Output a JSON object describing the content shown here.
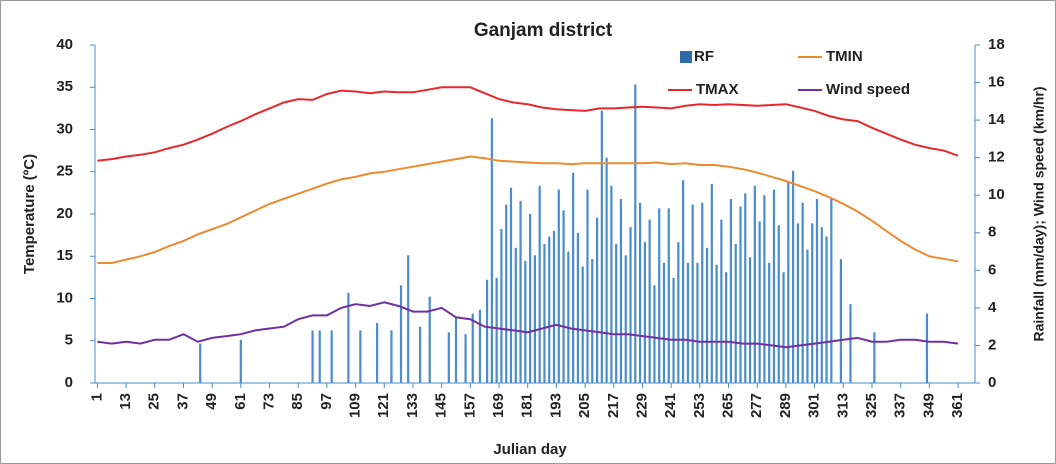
{
  "chart_data": {
    "type": "combo",
    "title": "Ganjam district",
    "xlabel": "Julian day",
    "ylabel": "Temperature (ºC)",
    "y2label": "Rainfall (mm/day); Wind speed (km/hr)",
    "xlim": [
      0,
      366
    ],
    "xticks": [
      1,
      13,
      25,
      37,
      49,
      61,
      73,
      85,
      97,
      109,
      121,
      133,
      145,
      157,
      169,
      181,
      193,
      205,
      217,
      229,
      241,
      253,
      265,
      277,
      289,
      301,
      313,
      325,
      337,
      349,
      361
    ],
    "ylim": [
      0,
      40
    ],
    "yticks": [
      0,
      5,
      10,
      15,
      20,
      25,
      30,
      35,
      40
    ],
    "y2lim": [
      0,
      18
    ],
    "y2ticks": [
      0,
      2,
      4,
      6,
      8,
      10,
      12,
      14,
      16,
      18
    ],
    "grid": false,
    "legend": "upper right",
    "x": [
      1,
      7,
      13,
      19,
      25,
      31,
      37,
      43,
      49,
      55,
      61,
      67,
      73,
      79,
      85,
      91,
      97,
      103,
      109,
      115,
      121,
      127,
      133,
      139,
      145,
      151,
      157,
      163,
      169,
      175,
      181,
      187,
      193,
      199,
      205,
      211,
      217,
      223,
      229,
      235,
      241,
      247,
      253,
      259,
      265,
      271,
      277,
      283,
      289,
      295,
      301,
      307,
      313,
      319,
      325,
      331,
      337,
      343,
      349,
      355,
      361
    ],
    "series": [
      {
        "name": "RF",
        "kind": "bar",
        "axis": "y2",
        "color": "#4a8ccc",
        "legend_color": "#2f6aa8",
        "x": [
          44,
          61,
          91,
          94,
          99,
          106,
          111,
          118,
          124,
          128,
          131,
          136,
          140,
          148,
          151,
          155,
          158,
          161,
          164,
          166,
          168,
          170,
          172,
          174,
          176,
          178,
          180,
          182,
          184,
          186,
          188,
          190,
          192,
          194,
          196,
          198,
          200,
          202,
          204,
          206,
          208,
          210,
          212,
          214,
          216,
          218,
          220,
          222,
          224,
          226,
          228,
          230,
          232,
          234,
          236,
          238,
          240,
          242,
          244,
          246,
          248,
          250,
          252,
          254,
          256,
          258,
          260,
          262,
          264,
          266,
          268,
          270,
          272,
          274,
          276,
          278,
          280,
          282,
          284,
          286,
          288,
          290,
          292,
          294,
          296,
          298,
          300,
          302,
          304,
          306,
          308,
          312,
          316,
          326,
          348
        ],
        "values": [
          2.1,
          2.3,
          2.8,
          2.8,
          2.8,
          4.8,
          2.8,
          3.2,
          2.8,
          5.2,
          6.8,
          3.0,
          4.6,
          2.7,
          3.5,
          2.6,
          3.7,
          3.9,
          5.5,
          14.1,
          5.6,
          8.2,
          9.5,
          10.4,
          7.2,
          9.7,
          6.5,
          9.0,
          6.8,
          10.5,
          7.4,
          7.8,
          8.1,
          10.3,
          9.2,
          7.0,
          11.2,
          8.0,
          6.2,
          10.3,
          6.6,
          8.8,
          14.5,
          12.0,
          10.5,
          7.4,
          9.8,
          6.8,
          8.3,
          15.9,
          9.6,
          7.5,
          8.7,
          5.2,
          9.3,
          6.4,
          9.3,
          5.6,
          7.5,
          10.8,
          6.4,
          9.5,
          6.4,
          9.6,
          7.2,
          10.6,
          6.3,
          8.7,
          5.9,
          9.8,
          7.4,
          9.4,
          10.1,
          6.7,
          10.5,
          8.6,
          10.0,
          6.4,
          10.3,
          8.4,
          5.9,
          10.7,
          11.3,
          8.5,
          9.6,
          7.1,
          8.5,
          9.8,
          8.3,
          7.8,
          9.8,
          6.6,
          4.2,
          2.7,
          3.7
        ]
      },
      {
        "name": "TMIN",
        "kind": "line",
        "color": "#ed8a2e",
        "values": [
          14.2,
          14.2,
          14.6,
          15,
          15.5,
          16.2,
          16.8,
          17.6,
          18.2,
          18.8,
          19.6,
          20.4,
          21.2,
          21.8,
          22.4,
          23,
          23.6,
          24.1,
          24.4,
          24.8,
          25,
          25.3,
          25.6,
          25.9,
          26.2,
          26.5,
          26.8,
          26.6,
          26.3,
          26.2,
          26.1,
          26,
          26,
          25.9,
          26,
          26,
          26,
          26,
          26,
          26.1,
          25.9,
          26,
          25.8,
          25.8,
          25.6,
          25.3,
          24.9,
          24.4,
          23.9,
          23.3,
          22.7,
          22,
          21.2,
          20.3,
          19.2,
          18,
          16.8,
          15.8,
          15,
          14.7,
          14.4
        ]
      },
      {
        "name": "TMAX",
        "kind": "line",
        "color": "#e8282a",
        "values": [
          26.3,
          26.5,
          26.8,
          27,
          27.3,
          27.8,
          28.2,
          28.8,
          29.5,
          30.3,
          31,
          31.8,
          32.5,
          33.2,
          33.6,
          33.5,
          34.2,
          34.6,
          34.5,
          34.3,
          34.5,
          34.4,
          34.4,
          34.7,
          35,
          35,
          35,
          34.3,
          33.6,
          33.2,
          33,
          32.6,
          32.4,
          32.3,
          32.2,
          32.5,
          32.5,
          32.6,
          32.7,
          32.6,
          32.5,
          32.8,
          33,
          32.9,
          33,
          32.9,
          32.8,
          32.9,
          33,
          32.6,
          32.2,
          31.6,
          31.2,
          31,
          30.2,
          29.5,
          28.8,
          28.2,
          27.8,
          27.5,
          26.9
        ]
      },
      {
        "name": "Wind speed",
        "kind": "line",
        "axis": "y2",
        "color": "#7030a0",
        "values": [
          2.2,
          2.1,
          2.2,
          2.1,
          2.3,
          2.3,
          2.6,
          2.2,
          2.4,
          2.5,
          2.6,
          2.8,
          2.9,
          3.0,
          3.4,
          3.6,
          3.6,
          4.0,
          4.2,
          4.1,
          4.3,
          4.1,
          3.8,
          3.8,
          4.0,
          3.5,
          3.4,
          3.0,
          2.9,
          2.8,
          2.7,
          2.9,
          3.1,
          2.9,
          2.8,
          2.7,
          2.6,
          2.6,
          2.5,
          2.4,
          2.3,
          2.3,
          2.2,
          2.2,
          2.2,
          2.1,
          2.1,
          2.0,
          1.9,
          2.0,
          2.1,
          2.2,
          2.3,
          2.4,
          2.2,
          2.2,
          2.3,
          2.3,
          2.2,
          2.2,
          2.1
        ]
      }
    ]
  }
}
